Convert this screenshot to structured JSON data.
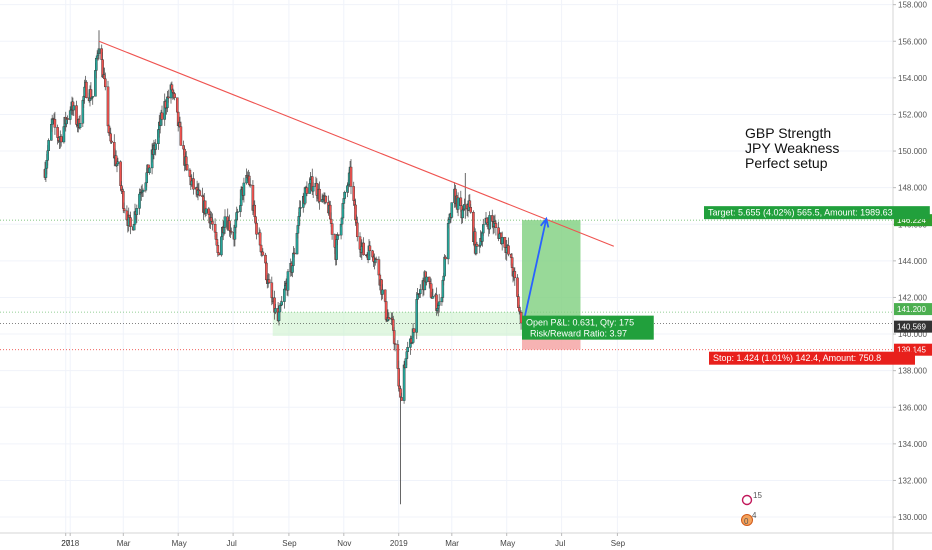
{
  "chart_data": {
    "type": "candlestick",
    "title": "",
    "xlabel": "",
    "ylabel": "",
    "y_ticks": [
      "130.000",
      "132.000",
      "134.000",
      "136.000",
      "138.000",
      "140.000",
      "142.000",
      "144.000",
      "146.000",
      "148.000",
      "150.000",
      "152.000",
      "154.000",
      "156.000",
      "158.000"
    ],
    "ylim": [
      129.5,
      158.5
    ],
    "x_ticks": [
      {
        "label": "27",
        "date": "2017-12-27"
      },
      {
        "label": "2018",
        "date": "2018-01-01"
      },
      {
        "label": "Mar",
        "date": "2018-03-01"
      },
      {
        "label": "May",
        "date": "2018-05-01"
      },
      {
        "label": "Jul",
        "date": "2018-07-01"
      },
      {
        "label": "Sep",
        "date": "2018-09-01"
      },
      {
        "label": "Nov",
        "date": "2018-11-01"
      },
      {
        "label": "2019",
        "date": "2019-01-01"
      },
      {
        "label": "Mar",
        "date": "2019-03-01"
      },
      {
        "label": "May",
        "date": "2019-05-01"
      },
      {
        "label": "Jul",
        "date": "2019-07-01"
      },
      {
        "label": "Sep",
        "date": "2019-09-01"
      }
    ],
    "xlim": [
      "2017-11-27",
      "2019-09-08"
    ],
    "grid": true,
    "colors": {
      "up": "#26a69a",
      "down": "#ef5350",
      "trendline": "#ef5350",
      "arrow": "#2962ff",
      "target_zone": "#7ed07e",
      "stop_zone": "#f4a0a0",
      "support_zone": "#c8f0c8"
    },
    "price_path": [
      [
        "2017-12-04",
        149.0
      ],
      [
        "2017-12-12",
        151.6
      ],
      [
        "2017-12-20",
        150.6
      ],
      [
        "2018-01-02",
        152.5
      ],
      [
        "2018-01-10",
        151.4
      ],
      [
        "2018-01-18",
        153.4
      ],
      [
        "2018-01-26",
        153.0
      ],
      [
        "2018-02-02",
        156.0
      ],
      [
        "2018-02-08",
        153.6
      ],
      [
        "2018-02-14",
        150.6
      ],
      [
        "2018-02-22",
        149.3
      ],
      [
        "2018-03-02",
        147.0
      ],
      [
        "2018-03-10",
        145.6
      ],
      [
        "2018-03-18",
        147.6
      ],
      [
        "2018-03-28",
        148.8
      ],
      [
        "2018-04-06",
        150.4
      ],
      [
        "2018-04-16",
        152.5
      ],
      [
        "2018-04-24",
        153.4
      ],
      [
        "2018-05-02",
        151.2
      ],
      [
        "2018-05-10",
        149.0
      ],
      [
        "2018-05-18",
        148.0
      ],
      [
        "2018-05-28",
        147.1
      ],
      [
        "2018-06-06",
        146.4
      ],
      [
        "2018-06-14",
        144.4
      ],
      [
        "2018-06-22",
        146.5
      ],
      [
        "2018-07-02",
        145.4
      ],
      [
        "2018-07-10",
        147.6
      ],
      [
        "2018-07-18",
        148.6
      ],
      [
        "2018-07-26",
        146.0
      ],
      [
        "2018-08-03",
        144.4
      ],
      [
        "2018-08-11",
        142.2
      ],
      [
        "2018-08-20",
        140.7
      ],
      [
        "2018-08-28",
        142.5
      ],
      [
        "2018-09-05",
        143.8
      ],
      [
        "2018-09-13",
        146.8
      ],
      [
        "2018-09-21",
        148.0
      ],
      [
        "2018-09-29",
        148.3
      ],
      [
        "2018-10-07",
        147.3
      ],
      [
        "2018-10-15",
        146.9
      ],
      [
        "2018-10-23",
        144.5
      ],
      [
        "2018-10-31",
        147.0
      ],
      [
        "2018-11-08",
        148.7
      ],
      [
        "2018-11-16",
        145.5
      ],
      [
        "2018-11-24",
        144.3
      ],
      [
        "2018-12-02",
        144.7
      ],
      [
        "2018-12-10",
        143.4
      ],
      [
        "2018-12-18",
        141.1
      ],
      [
        "2018-12-26",
        140.3
      ],
      [
        "2019-01-03",
        136.3
      ],
      [
        "2019-01-07",
        138.3
      ],
      [
        "2019-01-15",
        139.6
      ],
      [
        "2019-01-23",
        142.1
      ],
      [
        "2019-01-31",
        143.1
      ],
      [
        "2019-02-08",
        142.0
      ],
      [
        "2019-02-16",
        141.4
      ],
      [
        "2019-02-24",
        145.4
      ],
      [
        "2019-03-04",
        147.6
      ],
      [
        "2019-03-12",
        146.5
      ],
      [
        "2019-03-20",
        147.1
      ],
      [
        "2019-03-28",
        144.5
      ],
      [
        "2019-04-05",
        145.8
      ],
      [
        "2019-04-13",
        146.3
      ],
      [
        "2019-04-21",
        145.6
      ],
      [
        "2019-04-29",
        145.0
      ],
      [
        "2019-05-07",
        143.7
      ],
      [
        "2019-05-13",
        141.9
      ],
      [
        "2019-05-17",
        140.6
      ]
    ],
    "wicks": [
      {
        "date": "2019-01-03",
        "high": 136.6,
        "low": 130.7
      },
      {
        "date": "2018-02-02",
        "high": 156.6,
        "low": 155.2
      },
      {
        "date": "2019-03-16",
        "high": 148.8,
        "low": 146.3
      }
    ],
    "trendline": {
      "from": [
        "2018-02-02",
        156.0
      ],
      "to": [
        "2019-08-28",
        144.8
      ]
    },
    "support_zone": {
      "from": "2018-08-14",
      "to": "2019-05-22",
      "low": 139.9,
      "high": 141.2
    },
    "price_lines": [
      {
        "label": "141.200",
        "value": 141.2,
        "color": "#4caf50"
      },
      {
        "label": "140.569",
        "value": 140.569,
        "color": "#333333"
      },
      {
        "label": "146.224",
        "value": 146.224,
        "color": "#2e9e2e"
      },
      {
        "label": "139.145",
        "value": 139.145,
        "color": "#e8201c"
      }
    ],
    "position": {
      "from": "2019-05-18",
      "to": "2019-07-22",
      "entry": 140.569,
      "target": 146.224,
      "stop": 139.145,
      "target_label": "Target: 5.655 (4.02%) 565.5, Amount: 1989.63",
      "open_label": "Open P&L: 0.631, Qty: 175",
      "ratio_label": "Risk/Reward Ratio: 3.97",
      "stop_label": "Stop: 1.424 (1.01%) 142.4, Amount: 750.8"
    },
    "arrow": {
      "from": [
        "2019-05-20",
        140.7
      ],
      "to": [
        "2019-06-14",
        146.3
      ]
    },
    "annotations": [
      "GBP Strength",
      "JPY Weakness",
      "Perfect setup"
    ],
    "event_markers": [
      "15",
      "4",
      "0"
    ]
  }
}
